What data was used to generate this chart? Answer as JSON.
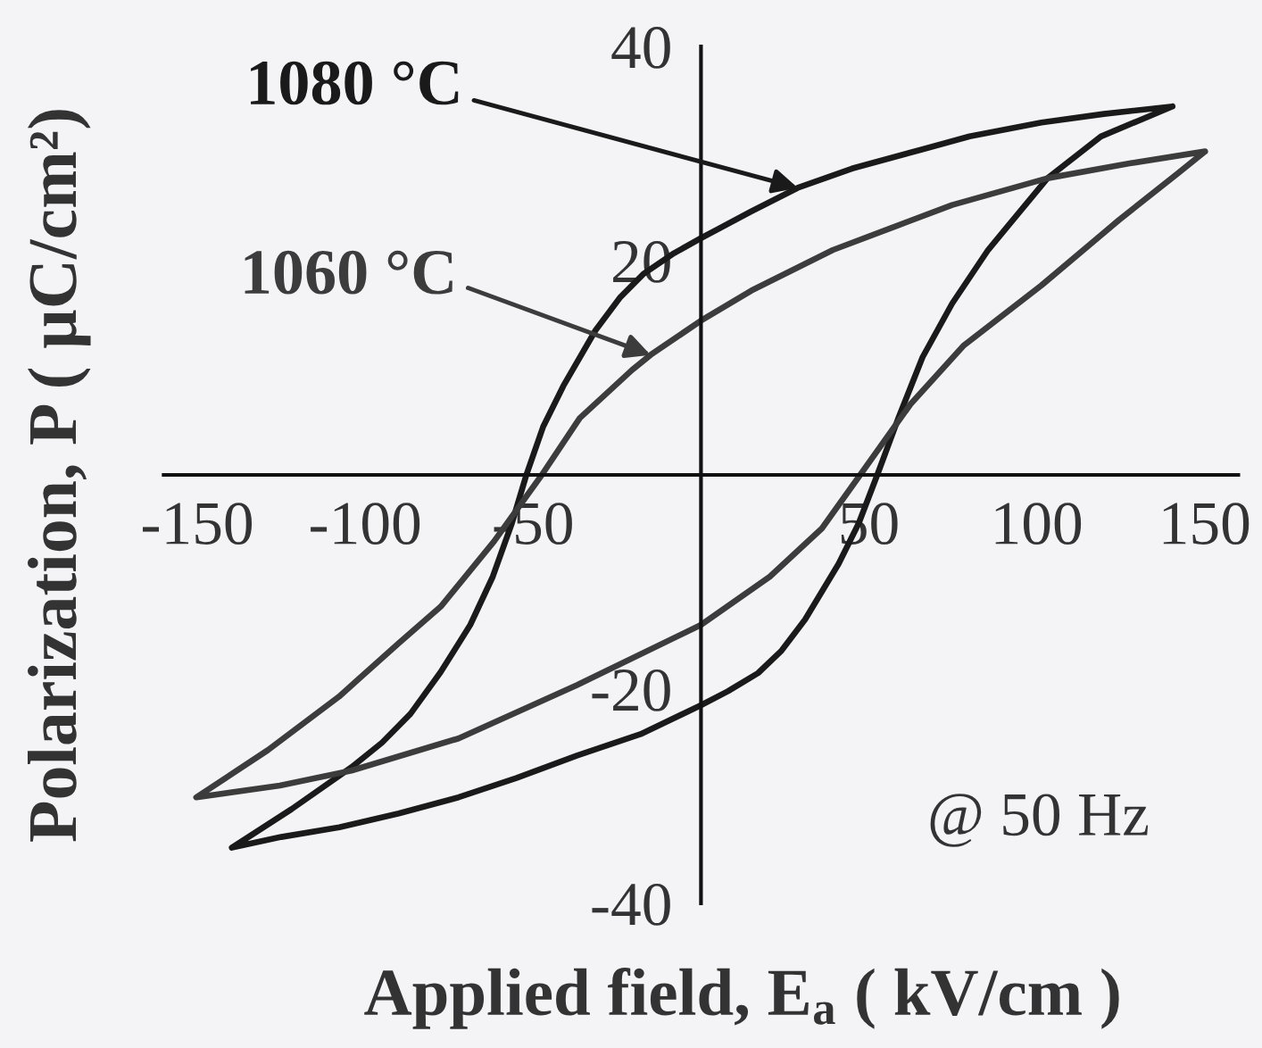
{
  "chart_data": {
    "type": "line",
    "xlabel": "Applied field, E$_{a}$ ( kV/cm )",
    "ylabel": "Polarization, P ( µC/cm²)",
    "annotations": [
      "@ 50 Hz"
    ],
    "xlim": [
      -160,
      160
    ],
    "ylim": [
      -40,
      40
    ],
    "xticks": [
      -150,
      -100,
      -50,
      50,
      100,
      150
    ],
    "yticks": [
      -40,
      -20,
      20,
      40
    ],
    "line_style": "solid",
    "series": [
      {
        "name": "1080 °C",
        "color": "#1a1a1a",
        "x": [
          140.4,
          120,
          101.4,
          80,
          66,
          45,
          28.8,
          15,
          0,
          -8,
          -17,
          -24,
          -31.4,
          -41,
          -47,
          -52,
          -56.4,
          -62,
          -68.7,
          -77.5,
          -86.5,
          -95,
          -104.1,
          -121.9,
          -139.7,
          -125,
          -107.7,
          -90,
          -72.2,
          -55,
          -36.9,
          -18,
          0,
          8,
          17,
          24,
          31,
          41,
          47,
          52.5,
          58.9,
          66,
          74.8,
          85.5,
          103.2,
          119.1,
          140.4,
          120
        ],
        "values": [
          34.4,
          33.7,
          32.9,
          31.6,
          30.4,
          28.6,
          26.8,
          24.6,
          22.1,
          20.7,
          18.8,
          16.6,
          13.5,
          8.3,
          4.5,
          0,
          -4.6,
          -9.5,
          -14,
          -18.4,
          -22.3,
          -25,
          -27.3,
          -31.2,
          -34.8,
          -33.8,
          -32.9,
          -31.6,
          -30.1,
          -28.3,
          -26.2,
          -24.2,
          -21.5,
          -20.2,
          -18.5,
          -16.4,
          -13.5,
          -8.3,
          -4.5,
          0,
          5.4,
          11,
          16,
          21,
          27.7,
          31.6,
          34.4,
          33.7
        ]
      },
      {
        "name": "1060 °C",
        "color": "#3c3c3c",
        "x": [
          150.1,
          128,
          103.2,
          74.8,
          39.3,
          15,
          0,
          -15,
          -20.5,
          -36.1,
          -47.4,
          -61.6,
          -77.5,
          -90,
          -107.8,
          -129,
          -150.3,
          -125.4,
          -104.1,
          -72.2,
          -36.8,
          0,
          20.5,
          36,
          47.4,
          62.4,
          78.3,
          101.4,
          124.5,
          142.2,
          150.1,
          128
        ],
        "values": [
          30.2,
          29.1,
          27.7,
          25.2,
          21,
          17.2,
          14.4,
          11.2,
          9.8,
          5.3,
          0,
          -6.2,
          -12.3,
          -15.7,
          -20.7,
          -25.7,
          -30.1,
          -29,
          -27.6,
          -24.6,
          -19.6,
          -14,
          -9.5,
          -5,
          0,
          6.6,
          12.1,
          17.7,
          23.8,
          28.2,
          30.2,
          29.1
        ]
      }
    ]
  }
}
